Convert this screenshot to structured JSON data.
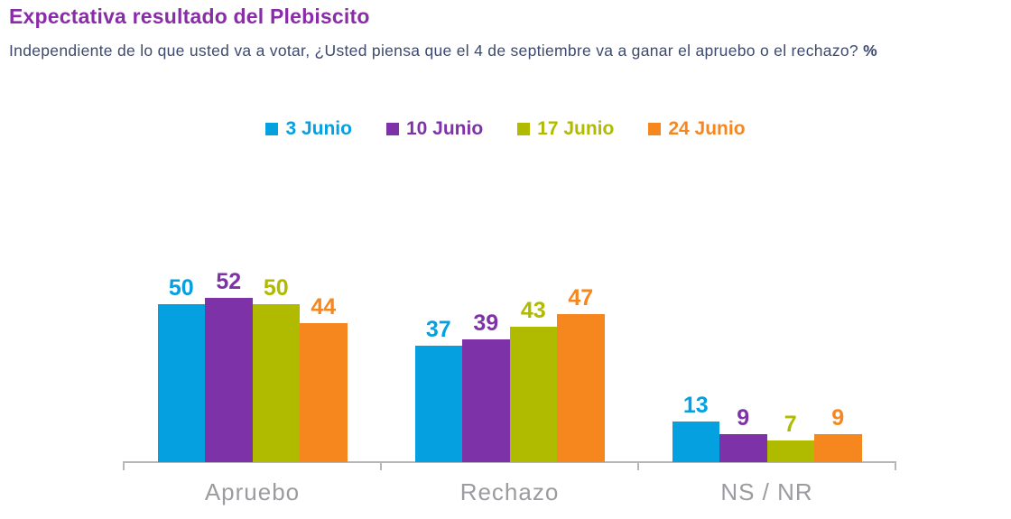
{
  "header": {
    "title": "Expectativa resultado del Plebiscito",
    "subtitle": "Independiente de lo que usted va a votar, ¿Usted piensa que el 4 de septiembre va a ganar el apruebo o el rechazo?",
    "subtitle_suffix_bold": "%"
  },
  "colors": {
    "title": "#8A2BA8",
    "subtitle": "#3D4A70",
    "axis_line": "#B7B7B7",
    "category_label": "#9B9BA0",
    "background": "#FFFFFF"
  },
  "chart_data": {
    "type": "bar",
    "title": "Expectativa resultado del Plebiscito",
    "subtitle": "Independiente de lo que usted va a votar, ¿Usted piensa que el 4 de septiembre va a ganar el apruebo o el rechazo? %",
    "categories": [
      "Apruebo",
      "Rechazo",
      "NS / NR"
    ],
    "series": [
      {
        "name": "3 Junio",
        "color": "#04A0E0",
        "values": [
          50,
          37,
          13
        ]
      },
      {
        "name": "10 Junio",
        "color": "#7D32A8",
        "values": [
          52,
          39,
          9
        ]
      },
      {
        "name": "17 Junio",
        "color": "#B0BB00",
        "values": [
          50,
          43,
          7
        ]
      },
      {
        "name": "24 Junio",
        "color": "#F6871F",
        "values": [
          44,
          47,
          9
        ]
      }
    ],
    "xlabel": "",
    "ylabel": "",
    "unit": "%",
    "ylim": [
      0,
      55
    ],
    "grid": false,
    "legend_position": "top-center",
    "value_labels": true
  }
}
